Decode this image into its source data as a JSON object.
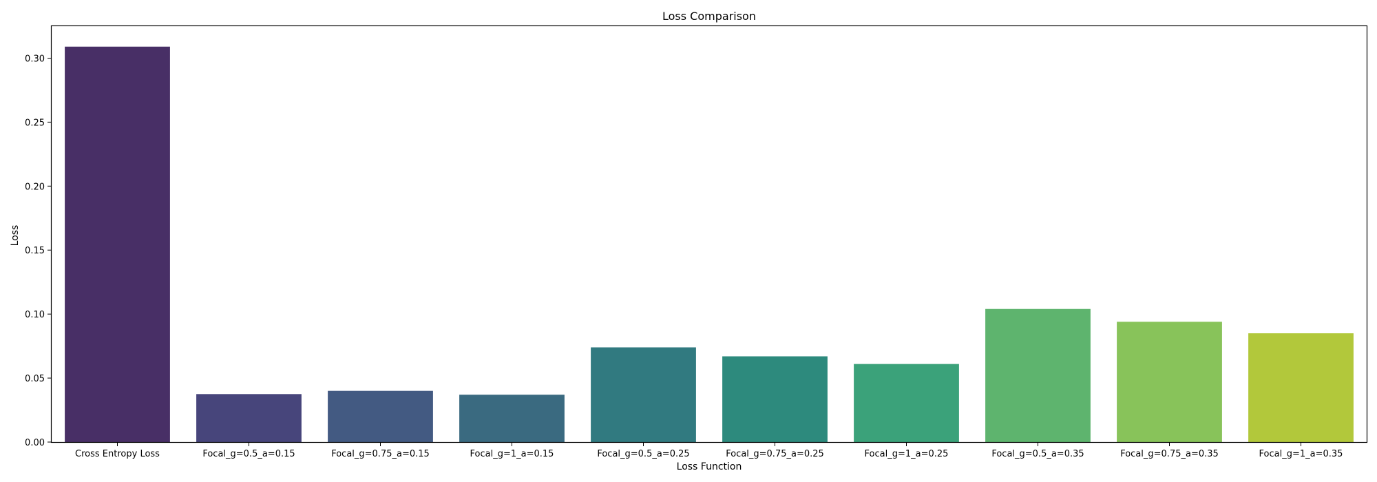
{
  "chart_data": {
    "type": "bar",
    "title": "Loss Comparison",
    "xlabel": "Loss Function",
    "ylabel": "Loss",
    "categories": [
      "Cross Entropy Loss",
      "Focal_g=0.5_a=0.15",
      "Focal_g=0.75_a=0.15",
      "Focal_g=1_a=0.15",
      "Focal_g=0.5_a=0.25",
      "Focal_g=0.75_a=0.25",
      "Focal_g=1_a=0.25",
      "Focal_g=0.5_a=0.35",
      "Focal_g=0.75_a=0.35",
      "Focal_g=1_a=0.35"
    ],
    "values": [
      0.309,
      0.0375,
      0.04,
      0.037,
      0.074,
      0.067,
      0.061,
      0.104,
      0.094,
      0.085
    ],
    "colors": [
      "#482f66",
      "#47457b",
      "#435a82",
      "#3a6a80",
      "#317a80",
      "#2d8a7d",
      "#3ba27a",
      "#5eb46e",
      "#88c35a",
      "#b2c83b"
    ],
    "ylim": [
      0,
      0.325
    ],
    "yticks": [
      0.0,
      0.05,
      0.1,
      0.15,
      0.2,
      0.25,
      0.3
    ],
    "ytick_labels": [
      "0.00",
      "0.05",
      "0.10",
      "0.15",
      "0.20",
      "0.25",
      "0.30"
    ],
    "grid": false,
    "legend": "none"
  }
}
